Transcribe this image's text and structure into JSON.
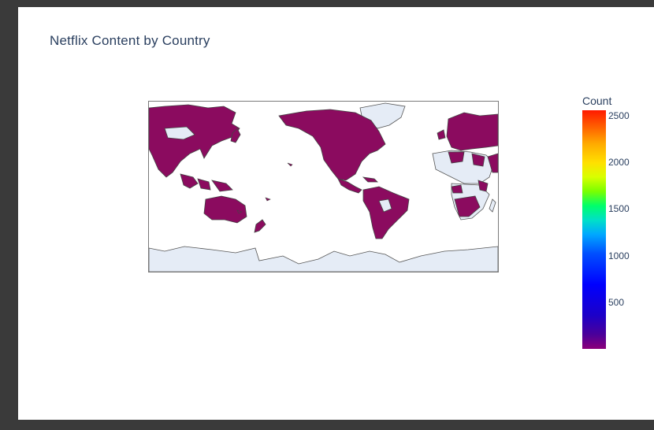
{
  "title": "Netflix Content by Country",
  "colorbar": {
    "title": "Count",
    "ticks": [
      "2500",
      "2000",
      "1500",
      "1000",
      "500"
    ]
  },
  "colors": {
    "country_fill": "#8b0b5f",
    "land_no_data": "#e5ecf6",
    "coastline": "#444444"
  },
  "chart_data": {
    "type": "choropleth",
    "title": "Netflix Content by Country",
    "colorscale": "rainbow (purple to red)",
    "colorbar_title": "Count",
    "colorbar_ticks": [
      500,
      1000,
      1500,
      2000,
      2500
    ],
    "range": [
      1,
      2600
    ]
  }
}
